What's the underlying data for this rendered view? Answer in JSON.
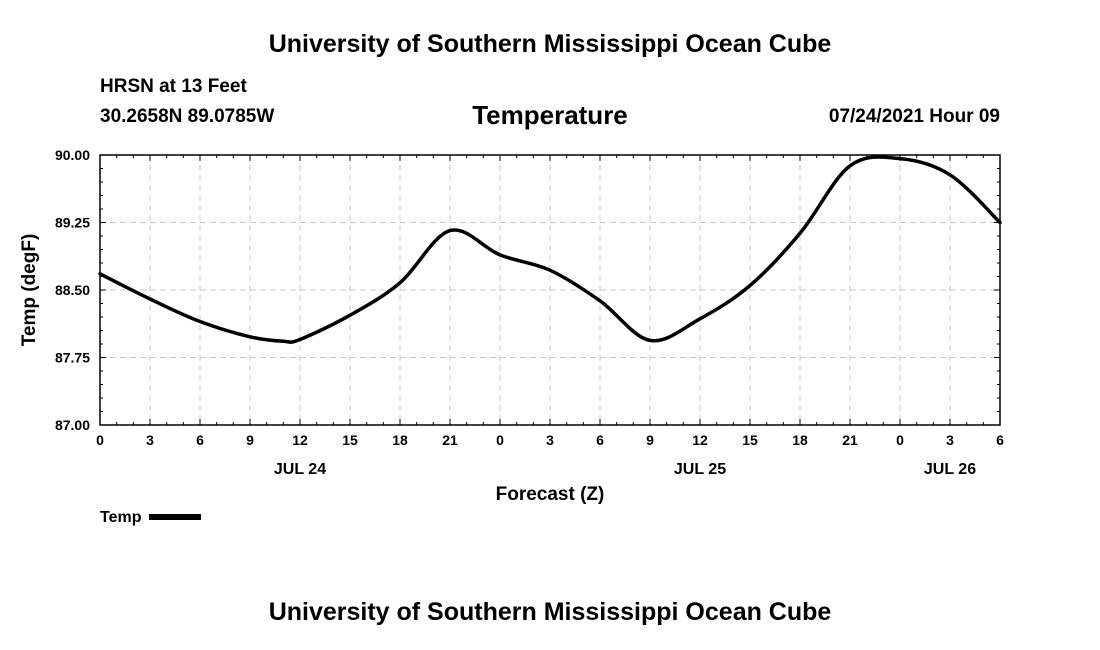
{
  "header": {
    "title": "University of Southern Mississippi Ocean Cube",
    "station": "HRSN at 13 Feet",
    "coordinates": "30.2658N  89.0785W",
    "variable": "Temperature",
    "valid_time": "07/24/2021 Hour 09"
  },
  "footer": {
    "title": "University of Southern Mississippi Ocean Cube"
  },
  "legend": {
    "label": "Temp"
  },
  "colors": {
    "line": "#000000",
    "grid": "#c8c8c8",
    "background": "#ffffff"
  },
  "chart_data": {
    "type": "line",
    "title": "Temperature",
    "xlabel": "Forecast (Z)",
    "ylabel": "Temp (degF)",
    "xlim": [
      0,
      54
    ],
    "ylim": [
      87.0,
      90.0
    ],
    "grid": true,
    "legend_position": "bottom-left",
    "x_ticks": [
      0,
      3,
      6,
      9,
      12,
      15,
      18,
      21,
      24,
      27,
      30,
      33,
      36,
      39,
      42,
      45,
      48,
      51,
      54
    ],
    "x_tick_labels": [
      "0",
      "3",
      "6",
      "9",
      "12",
      "15",
      "18",
      "21",
      "0",
      "3",
      "6",
      "9",
      "12",
      "15",
      "18",
      "21",
      "0",
      "3",
      "6"
    ],
    "date_labels": [
      {
        "hour": 12,
        "label": "JUL 24"
      },
      {
        "hour": 36,
        "label": "JUL 25"
      },
      {
        "hour": 51,
        "label": "JUL 26"
      }
    ],
    "y_ticks": [
      87.0,
      87.75,
      88.5,
      89.25,
      90.0
    ],
    "y_tick_labels": [
      "87.00",
      "87.75",
      "88.50",
      "89.25",
      "90.00"
    ],
    "series": [
      {
        "name": "Temp",
        "x": [
          0,
          3,
          6,
          9,
          11,
          12,
          15,
          18,
          21,
          24,
          27,
          30,
          33,
          36,
          39,
          42,
          45,
          48,
          51,
          54
        ],
        "values": [
          88.68,
          88.4,
          88.15,
          87.98,
          87.93,
          87.95,
          88.22,
          88.58,
          89.16,
          88.89,
          88.72,
          88.38,
          87.94,
          88.18,
          88.55,
          89.13,
          89.88,
          89.96,
          89.78,
          89.25
        ]
      }
    ]
  }
}
